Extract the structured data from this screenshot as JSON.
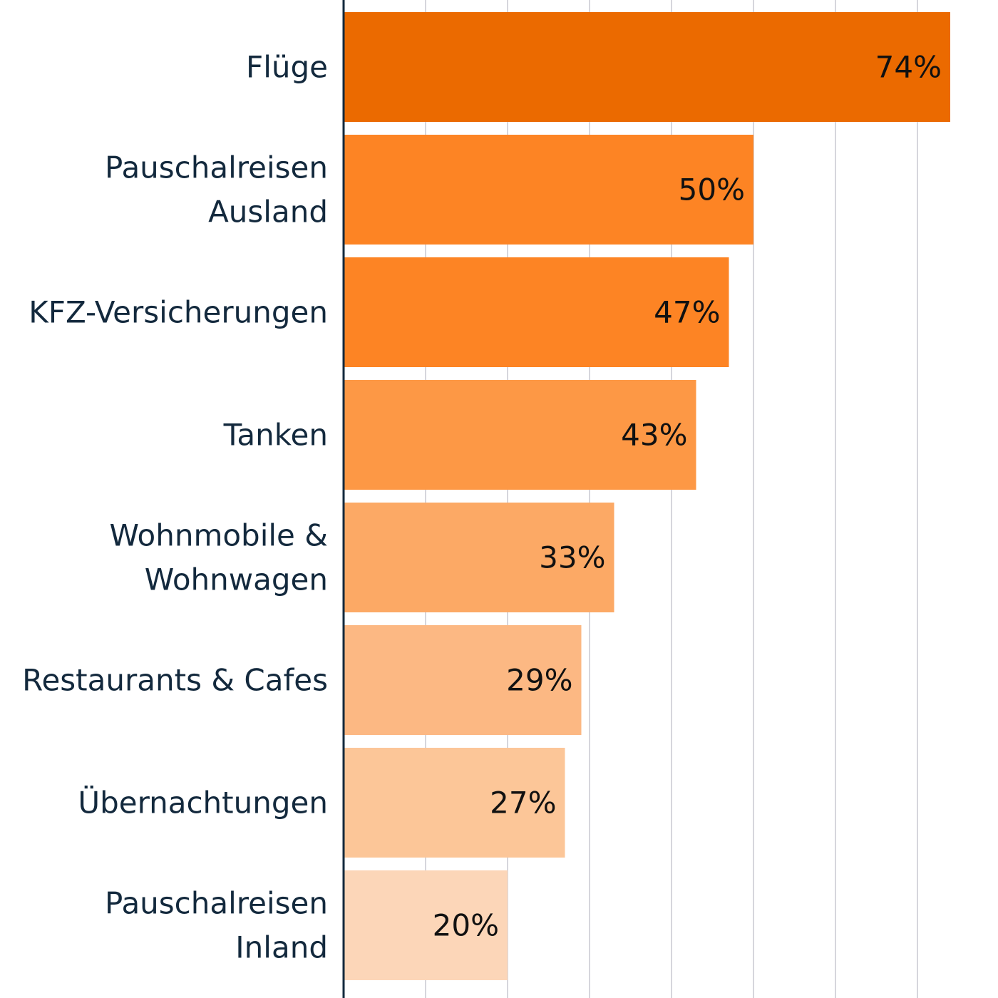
{
  "chart_data": {
    "type": "bar",
    "orientation": "horizontal",
    "categories": [
      [
        "Flüge"
      ],
      [
        "Pauschalreisen",
        "Ausland"
      ],
      [
        "KFZ-Versicherungen"
      ],
      [
        "Tanken"
      ],
      [
        "Wohnmobile &",
        "Wohnwagen"
      ],
      [
        "Restaurants & Cafes"
      ],
      [
        "Übernachtungen"
      ],
      [
        "Pauschalreisen",
        "Inland"
      ]
    ],
    "values": [
      74,
      50,
      47,
      43,
      33,
      29,
      27,
      20
    ],
    "value_labels": [
      "74%",
      "50%",
      "47%",
      "43%",
      "33%",
      "29%",
      "27%",
      "20%"
    ],
    "colors": [
      "#eb6a00",
      "#fd8424",
      "#fd8424",
      "#fd9845",
      "#fca965",
      "#fcb883",
      "#fcc698",
      "#fcd6b8"
    ],
    "xlim": [
      0,
      78
    ],
    "grid_step": 10,
    "grid": true,
    "axis_color": "#13293d",
    "grid_color": "#d6d6dc"
  }
}
